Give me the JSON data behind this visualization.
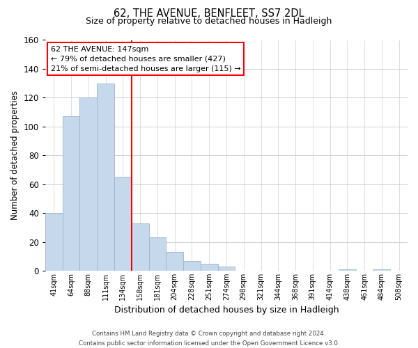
{
  "title1": "62, THE AVENUE, BENFLEET, SS7 2DL",
  "title2": "Size of property relative to detached houses in Hadleigh",
  "xlabel": "Distribution of detached houses by size in Hadleigh",
  "ylabel": "Number of detached properties",
  "bar_labels": [
    "41sqm",
    "64sqm",
    "88sqm",
    "111sqm",
    "134sqm",
    "158sqm",
    "181sqm",
    "204sqm",
    "228sqm",
    "251sqm",
    "274sqm",
    "298sqm",
    "321sqm",
    "344sqm",
    "368sqm",
    "391sqm",
    "414sqm",
    "438sqm",
    "461sqm",
    "484sqm",
    "508sqm"
  ],
  "bar_heights": [
    40,
    107,
    120,
    130,
    65,
    33,
    23,
    13,
    7,
    5,
    3,
    0,
    0,
    0,
    0,
    0,
    0,
    1,
    0,
    1,
    0
  ],
  "bar_color": "#c6d9ec",
  "bar_edge_color": "#9ab5ce",
  "vline_x": 4.5,
  "vline_color": "red",
  "ylim": [
    0,
    160
  ],
  "yticks": [
    0,
    20,
    40,
    60,
    80,
    100,
    120,
    140,
    160
  ],
  "annotation_line1": "62 THE AVENUE: 147sqm",
  "annotation_line2": "← 79% of detached houses are smaller (427)",
  "annotation_line3": "21% of semi-detached houses are larger (115) →",
  "footer_line1": "Contains HM Land Registry data © Crown copyright and database right 2024.",
  "footer_line2": "Contains public sector information licensed under the Open Government Licence v3.0.",
  "background_color": "#ffffff",
  "grid_color": "#d0d0d0"
}
